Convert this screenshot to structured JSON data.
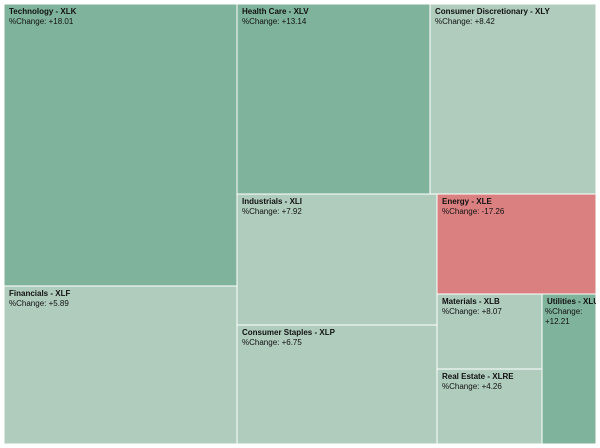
{
  "chart_data": {
    "type": "treemap",
    "value_label": "%Change:",
    "colors": {
      "strong_positive": "#7fb39b",
      "mild_positive": "#afccbd",
      "negative": "#db8080",
      "border": "#ffffff"
    },
    "tiles": [
      {
        "name": "Technology - XLK",
        "change": "+18.01"
      },
      {
        "name": "Health Care - XLV",
        "change": "+13.14"
      },
      {
        "name": "Consumer Discretionary - XLY",
        "change": "+8.42"
      },
      {
        "name": "Financials - XLF",
        "change": "+5.89"
      },
      {
        "name": "Industrials - XLI",
        "change": "+7.92"
      },
      {
        "name": "Energy - XLE",
        "change": "-17.26"
      },
      {
        "name": "Consumer Staples - XLP",
        "change": "+6.75"
      },
      {
        "name": "Materials - XLB",
        "change": "+8.07"
      },
      {
        "name": "Utilities - XLU",
        "change": "+12.21"
      },
      {
        "name": "Real Estate - XLRE",
        "change": "+4.26"
      }
    ]
  }
}
